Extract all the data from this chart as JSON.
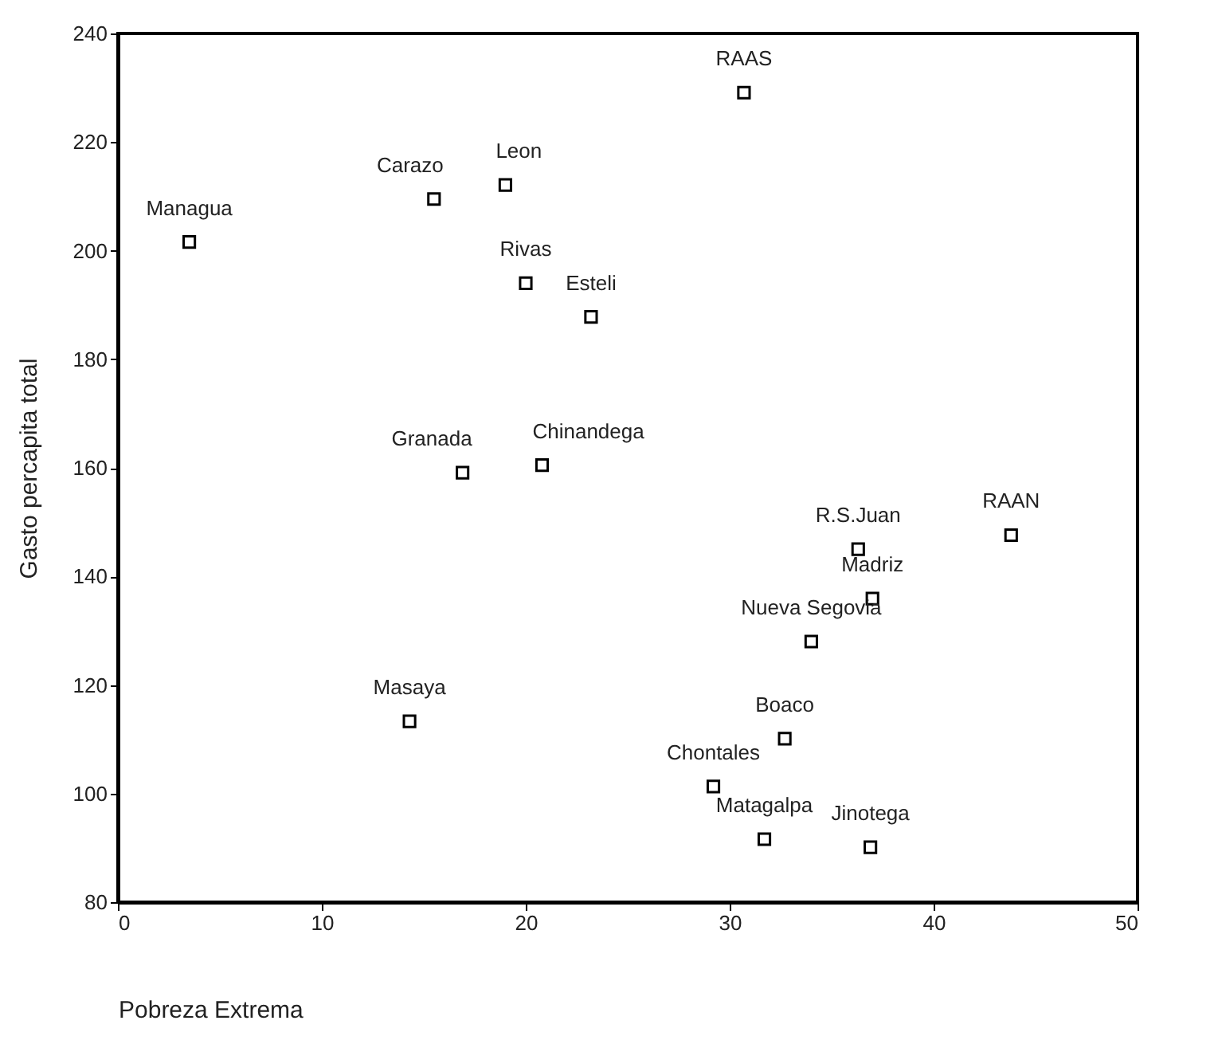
{
  "chart_data": {
    "type": "scatter",
    "xlabel": "Pobreza Extrema",
    "ylabel": "Gasto percapita total",
    "x": [
      3.5,
      15.5,
      19.0,
      20.0,
      23.2,
      16.9,
      20.8,
      30.7,
      43.8,
      36.3,
      37.0,
      34.0,
      32.7,
      29.2,
      31.7,
      36.9,
      14.3
    ],
    "values": [
      201.6,
      209.5,
      212.1,
      194.0,
      187.8,
      159.1,
      160.5,
      229.1,
      147.6,
      145.0,
      135.9,
      128.0,
      110.1,
      101.3,
      91.6,
      90.1,
      113.3
    ],
    "color": "#000000",
    "marker": "square",
    "xlim": [
      0,
      50
    ],
    "ylim": [
      80,
      240
    ],
    "xticks": [
      0,
      10,
      20,
      30,
      40,
      50
    ],
    "yticks": [
      80,
      100,
      120,
      140,
      160,
      180,
      200,
      220,
      240
    ],
    "annotations": [
      {
        "text": "Managua",
        "x": 3.5,
        "y": 201.6
      },
      {
        "text": "Carazo",
        "x": 15.5,
        "y": 209.5
      },
      {
        "text": "Leon",
        "x": 19.0,
        "y": 212.1
      },
      {
        "text": "Rivas",
        "x": 20.0,
        "y": 194.0
      },
      {
        "text": "Esteli",
        "x": 23.2,
        "y": 187.8
      },
      {
        "text": "Granada",
        "x": 16.9,
        "y": 159.1
      },
      {
        "text": "Chinandega",
        "x": 20.8,
        "y": 160.5
      },
      {
        "text": "RAAS",
        "x": 30.7,
        "y": 229.1
      },
      {
        "text": "RAAN",
        "x": 43.8,
        "y": 147.6
      },
      {
        "text": "R.S.Juan",
        "x": 36.3,
        "y": 145.0
      },
      {
        "text": "Madriz",
        "x": 37.0,
        "y": 135.9
      },
      {
        "text": "Nueva Segovia",
        "x": 34.0,
        "y": 128.0
      },
      {
        "text": "Boaco",
        "x": 32.7,
        "y": 110.1
      },
      {
        "text": "Chontales",
        "x": 29.2,
        "y": 101.3
      },
      {
        "text": "Matagalpa",
        "x": 31.7,
        "y": 91.6
      },
      {
        "text": "Jinotega",
        "x": 36.9,
        "y": 90.1
      },
      {
        "text": "Masaya",
        "x": 14.3,
        "y": 113.3
      }
    ]
  }
}
